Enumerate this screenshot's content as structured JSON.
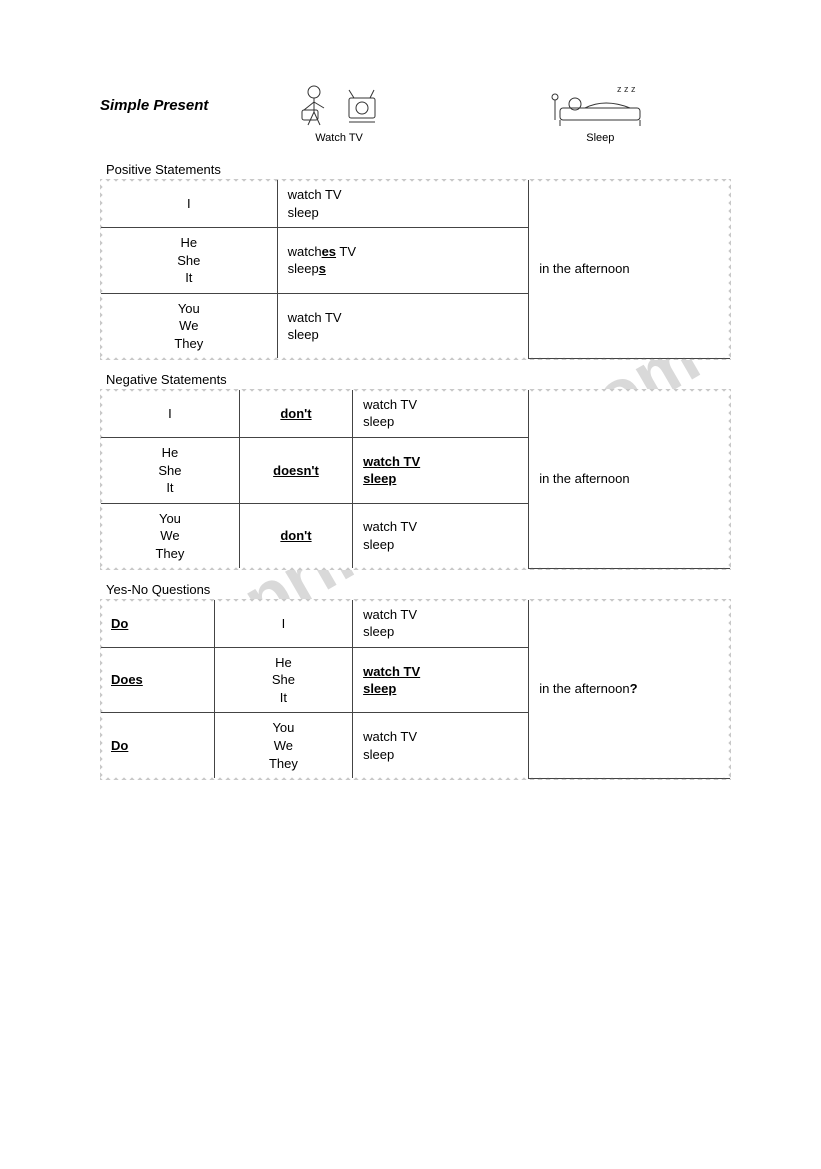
{
  "title": "Simple Present",
  "illustrations": {
    "watch": "Watch TV",
    "sleep": "Sleep"
  },
  "watermark": "ESLprintables.com",
  "sections": {
    "positive": {
      "label": "Positive Statements",
      "rows": [
        {
          "subj": "I",
          "verb_plain": "watch TV\nsleep"
        },
        {
          "subj": "He\nShe\nIt",
          "verb_html": "watch<b><u>es</u></b> TV<br>sleep<b><u>s</u></b>"
        },
        {
          "subj": "You\nWe\nThey",
          "verb_plain": "watch TV\nsleep"
        }
      ],
      "tail": "in the afternoon"
    },
    "negative": {
      "label": "Negative Statements",
      "rows": [
        {
          "subj": "I",
          "aux": "don't",
          "verb_plain": "watch TV\nsleep"
        },
        {
          "subj": "He\nShe\nIt",
          "aux": "doesn't",
          "verb_bold": "watch TV\nsleep"
        },
        {
          "subj": "You\nWe\nThey",
          "aux": "don't",
          "verb_plain": "watch TV\nsleep"
        }
      ],
      "tail": "in the afternoon"
    },
    "questions": {
      "label": "Yes-No Questions",
      "rows": [
        {
          "aux": "Do",
          "subj": "I",
          "verb_plain": "watch TV\nsleep"
        },
        {
          "aux": "Does",
          "subj": "He\nShe\nIt",
          "verb_bold": "watch TV\nsleep"
        },
        {
          "aux": "Do",
          "subj": "You\nWe\nThey",
          "verb_plain": "watch TV\nsleep"
        }
      ],
      "tail": "in the afternoon",
      "tail_mark": "?"
    }
  },
  "col_widths": {
    "positive": [
      "28%",
      "40%",
      "32%"
    ],
    "negative": [
      "22%",
      "18%",
      "28%",
      "32%"
    ],
    "questions": [
      "18%",
      "22%",
      "28%",
      "32%"
    ]
  }
}
